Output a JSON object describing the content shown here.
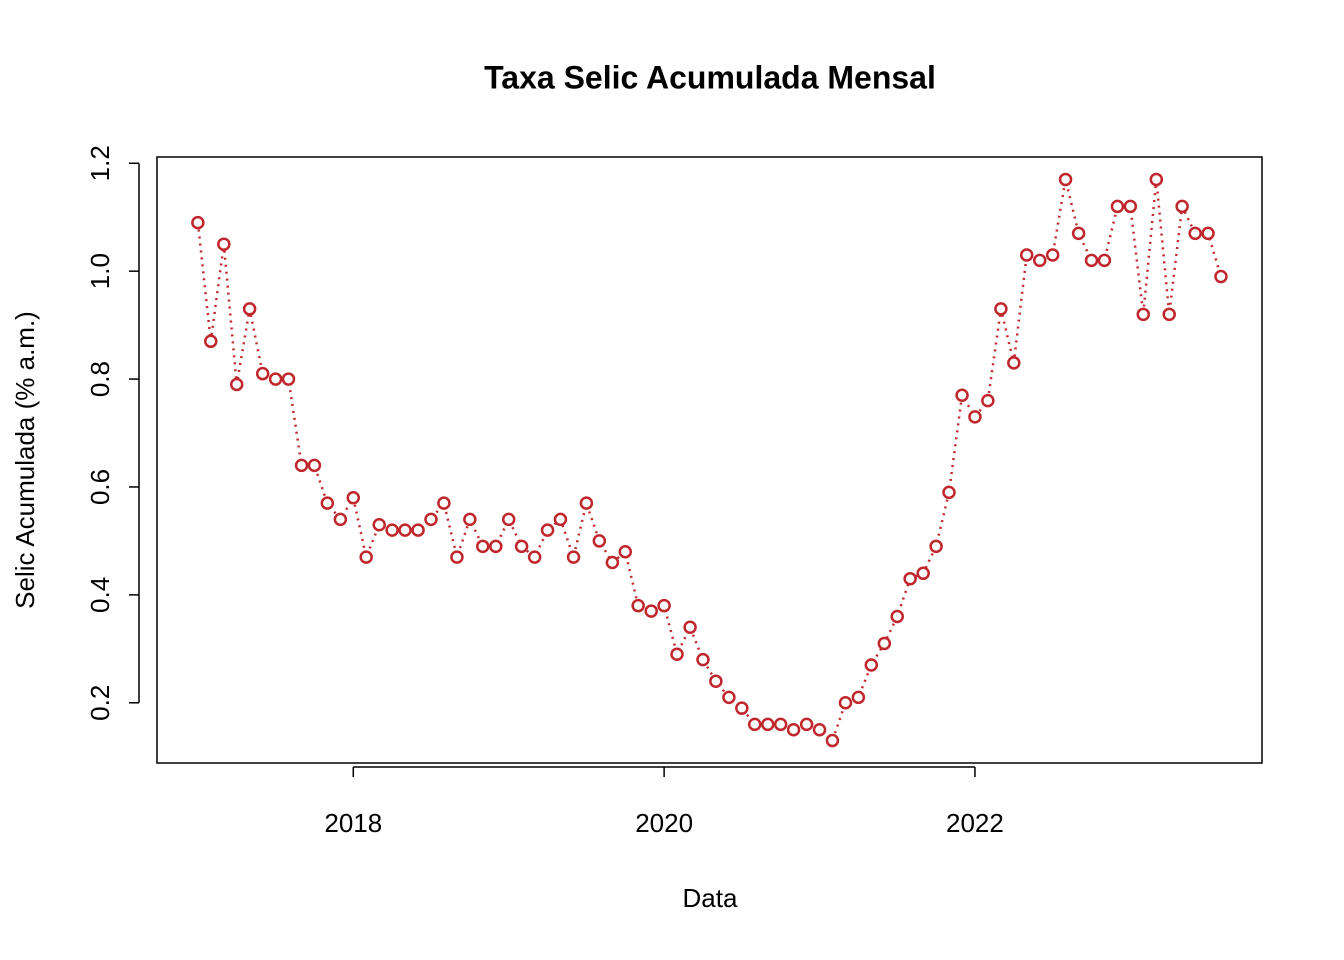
{
  "chart_data": {
    "type": "line",
    "title": "Taxa Selic Acumulada Mensal",
    "x_label": "Data",
    "y_label": "Selic Acumulada (% a.m.)",
    "x": [
      2017.0,
      2017.083,
      2017.167,
      2017.25,
      2017.333,
      2017.417,
      2017.5,
      2017.583,
      2017.667,
      2017.75,
      2017.833,
      2017.917,
      2018.0,
      2018.083,
      2018.167,
      2018.25,
      2018.333,
      2018.417,
      2018.5,
      2018.583,
      2018.667,
      2018.75,
      2018.833,
      2018.917,
      2019.0,
      2019.083,
      2019.167,
      2019.25,
      2019.333,
      2019.417,
      2019.5,
      2019.583,
      2019.667,
      2019.75,
      2019.833,
      2019.917,
      2020.0,
      2020.083,
      2020.167,
      2020.25,
      2020.333,
      2020.417,
      2020.5,
      2020.583,
      2020.667,
      2020.75,
      2020.833,
      2020.917,
      2021.0,
      2021.083,
      2021.167,
      2021.25,
      2021.333,
      2021.417,
      2021.5,
      2021.583,
      2021.667,
      2021.75,
      2021.833,
      2021.917,
      2022.0,
      2022.083,
      2022.167,
      2022.25,
      2022.333,
      2022.417,
      2022.5,
      2022.583,
      2022.667,
      2022.75,
      2022.833,
      2022.917,
      2023.0,
      2023.083,
      2023.167,
      2023.25,
      2023.333,
      2023.417,
      2023.5,
      2023.583
    ],
    "series": [
      {
        "name": "Selic",
        "color": "#c0272d",
        "values": [
          1.09,
          0.87,
          1.05,
          0.79,
          0.93,
          0.81,
          0.8,
          0.8,
          0.64,
          0.64,
          0.57,
          0.54,
          0.58,
          0.47,
          0.53,
          0.52,
          0.52,
          0.52,
          0.54,
          0.57,
          0.47,
          0.54,
          0.49,
          0.49,
          0.54,
          0.49,
          0.47,
          0.52,
          0.54,
          0.47,
          0.57,
          0.5,
          0.46,
          0.48,
          0.38,
          0.37,
          0.38,
          0.29,
          0.34,
          0.28,
          0.24,
          0.21,
          0.19,
          0.16,
          0.16,
          0.16,
          0.15,
          0.16,
          0.15,
          0.13,
          0.2,
          0.21,
          0.27,
          0.31,
          0.36,
          0.43,
          0.44,
          0.49,
          0.59,
          0.77,
          0.73,
          0.76,
          0.93,
          0.83,
          1.03,
          1.02,
          1.03,
          1.17,
          1.07,
          1.02,
          1.02,
          1.12,
          1.12,
          0.92,
          1.17,
          0.92,
          1.12,
          1.07,
          1.07,
          0.99
        ]
      }
    ],
    "xlim": [
      2016.737,
      2023.847
    ],
    "ylim": [
      0.0884,
      1.2116
    ],
    "xticks": [
      2018,
      2020,
      2022
    ],
    "yticks": [
      0.2,
      0.4,
      0.6,
      0.8,
      {
        "value": 1,
        "label": "1.0"
      },
      1.2
    ],
    "grid": false
  }
}
